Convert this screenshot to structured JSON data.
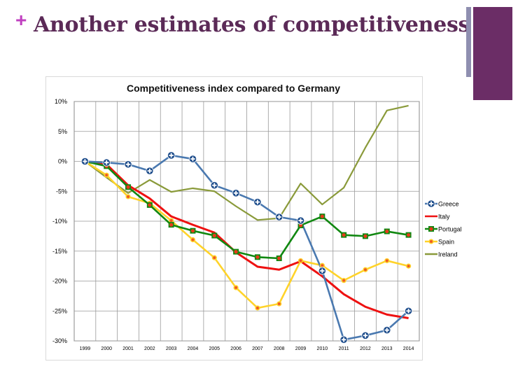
{
  "slide": {
    "title": "Another estimates of competitiveness",
    "bullet_glyph": "+"
  },
  "colors": {
    "title": "#5b2a57",
    "accent_block": "#6b2d66",
    "accent_bar": "#8f8fb0",
    "plus": "#c040c0"
  },
  "chart_data": {
    "type": "line",
    "title": "Competitiveness index compared to Germany",
    "xlabel": "",
    "ylabel": "",
    "categories": [
      "1999",
      "2000",
      "2001",
      "2002",
      "2003",
      "2004",
      "2005",
      "2006",
      "2007",
      "2008",
      "2009",
      "2010",
      "2011",
      "2012",
      "2013",
      "2014"
    ],
    "ylim": [
      -30,
      10
    ],
    "yticks": [
      10,
      5,
      0,
      -5,
      -10,
      -15,
      -20,
      -25,
      -30
    ],
    "ytick_labels": [
      "10%",
      "5%",
      "0%",
      "-5%",
      "-10%",
      "-15%",
      "-20%",
      "-25%",
      "-30%"
    ],
    "grid": true,
    "legend_position": "right",
    "series": [
      {
        "name": "Greece",
        "color": "#4a79b0",
        "marker": "plus-circle",
        "values": [
          0,
          -0.2,
          -0.5,
          -1.6,
          1.0,
          0.4,
          -4.0,
          -5.3,
          -6.8,
          -9.3,
          -9.9,
          -18.3,
          -29.8,
          -29.1,
          -28.2,
          -25.0
        ]
      },
      {
        "name": "Italy",
        "color": "#ee1111",
        "marker": "none",
        "values": [
          0,
          -0.5,
          -4.0,
          -6.2,
          -9.2,
          -10.6,
          -11.9,
          -15.2,
          -17.6,
          -18.1,
          -16.7,
          -19.2,
          -22.2,
          -24.3,
          -25.6,
          -26.2
        ]
      },
      {
        "name": "Portugal",
        "color": "#118811",
        "marker": "square-red",
        "values": [
          0,
          -0.8,
          -4.3,
          -7.3,
          -10.6,
          -11.6,
          -12.4,
          -15.1,
          -16.0,
          -16.2,
          -10.7,
          -9.2,
          -12.3,
          -12.5,
          -11.7,
          -12.3
        ]
      },
      {
        "name": "Spain",
        "color": "#ffd32a",
        "marker": "dot-orange",
        "values": [
          0,
          -2.3,
          -5.9,
          -7.0,
          -9.9,
          -13.1,
          -16.1,
          -21.1,
          -24.5,
          -23.8,
          -16.6,
          -17.4,
          -19.9,
          -18.1,
          -16.6,
          -17.5
        ]
      },
      {
        "name": "Ireland",
        "color": "#8a9a3a",
        "marker": "none",
        "values": [
          0,
          -2.7,
          -5.3,
          -3.1,
          -5.1,
          -4.5,
          -5.0,
          -7.5,
          -9.8,
          -9.5,
          -3.7,
          -7.2,
          -4.4,
          2.3,
          8.5,
          9.3
        ]
      }
    ]
  }
}
